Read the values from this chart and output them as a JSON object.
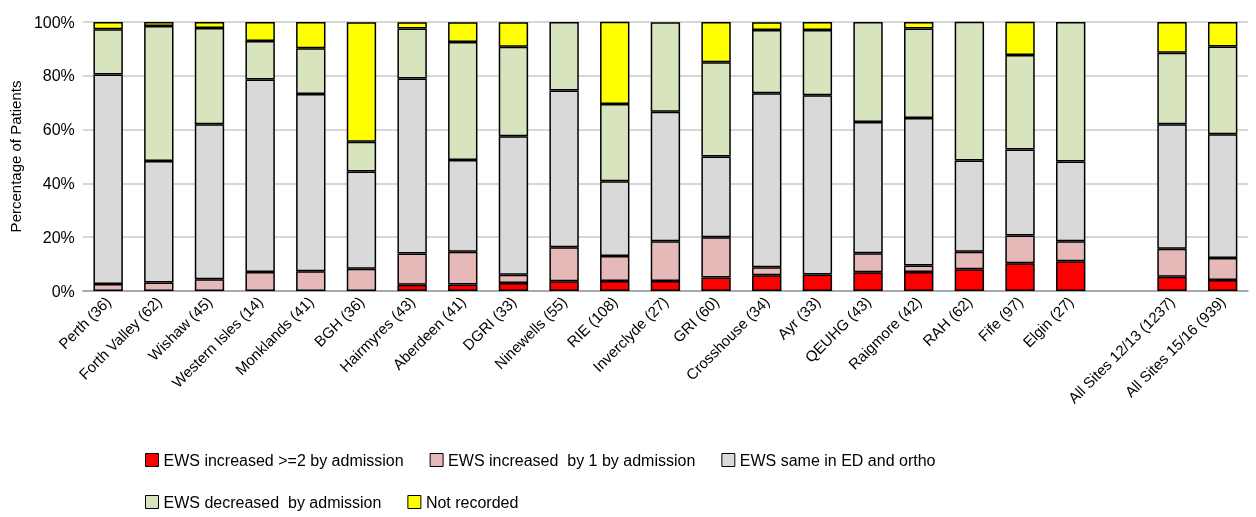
{
  "chart_data": {
    "type": "bar",
    "stacked": true,
    "ylabel": "Percentage of Patients",
    "categories": [
      "Perth (36)",
      "Forth Valley (62)",
      "Wishaw (45)",
      "Western Isles (14)",
      "Monklands (41)",
      "BGH (36)",
      "Hairmyres (43)",
      "Aberdeen (41)",
      "DGRI (33)",
      "Ninewells (55)",
      "RIE (108)",
      "Inverclyde (27)",
      "GRI (60)",
      "Crosshouse (34)",
      "Ayr (33)",
      "QEUHG (43)",
      "Raigmore (42)",
      "RAH (62)",
      "Fife (97)",
      "Elgin (27)",
      null,
      "All Sites 12/13 (1237)",
      "All Sites 15/16 (939)"
    ],
    "series": [
      {
        "name": "EWS increased >=2 by admission",
        "color": "#ff0000",
        "values": [
          0,
          0,
          0,
          0,
          0,
          0,
          2.3,
          2.4,
          3.0,
          3.6,
          3.7,
          3.7,
          5.0,
          5.9,
          6.1,
          7.0,
          7.1,
          8.1,
          10.3,
          11.1,
          null,
          5.3,
          4.1
        ]
      },
      {
        "name": "EWS increased  by 1 by admission",
        "color": "#e6b9b8",
        "values": [
          2.6,
          3.2,
          4.4,
          7.1,
          7.3,
          8.3,
          11.6,
          12.2,
          3.0,
          12.7,
          9.3,
          14.8,
          15.0,
          2.9,
          0,
          7.0,
          2.4,
          6.5,
          10.3,
          7.4,
          null,
          10.4,
          8.2
        ]
      },
      {
        "name": "EWS same in ED and ortho",
        "color": "#d9d9d9",
        "values": [
          77.9,
          45.1,
          57.6,
          71.5,
          65.9,
          36.1,
          65.1,
          34.1,
          51.5,
          58.2,
          27.8,
          48.1,
          30.0,
          64.7,
          66.7,
          48.8,
          54.8,
          33.9,
          32.0,
          29.6,
          null,
          46.3,
          46.0
        ]
      },
      {
        "name": "EWS decreased  by admission",
        "color": "#d7e4bd",
        "values": [
          16.8,
          50.2,
          35.8,
          14.3,
          17.0,
          11.1,
          18.6,
          43.9,
          33.3,
          25.5,
          28.7,
          33.3,
          35.0,
          23.5,
          24.2,
          37.2,
          33.3,
          51.6,
          35.1,
          51.9,
          null,
          26.6,
          32.6
        ]
      },
      {
        "name": "Not recorded",
        "color": "#ffff00",
        "values": [
          2.7,
          1.5,
          2.2,
          7.1,
          9.8,
          44.4,
          2.3,
          7.3,
          9.1,
          0,
          30.6,
          0,
          15.0,
          2.9,
          3.0,
          0,
          2.4,
          0,
          12.4,
          0,
          null,
          11.4,
          9.1
        ]
      }
    ],
    "ylim": [
      0,
      100
    ],
    "yticks": [
      {
        "value": 0,
        "label": "0%"
      },
      {
        "value": 20,
        "label": "20%"
      },
      {
        "value": 40,
        "label": "40%"
      },
      {
        "value": 60,
        "label": "60%"
      },
      {
        "value": 80,
        "label": "80%"
      },
      {
        "value": 100,
        "label": "100%"
      }
    ],
    "grid": "y",
    "legend": "bottom"
  }
}
